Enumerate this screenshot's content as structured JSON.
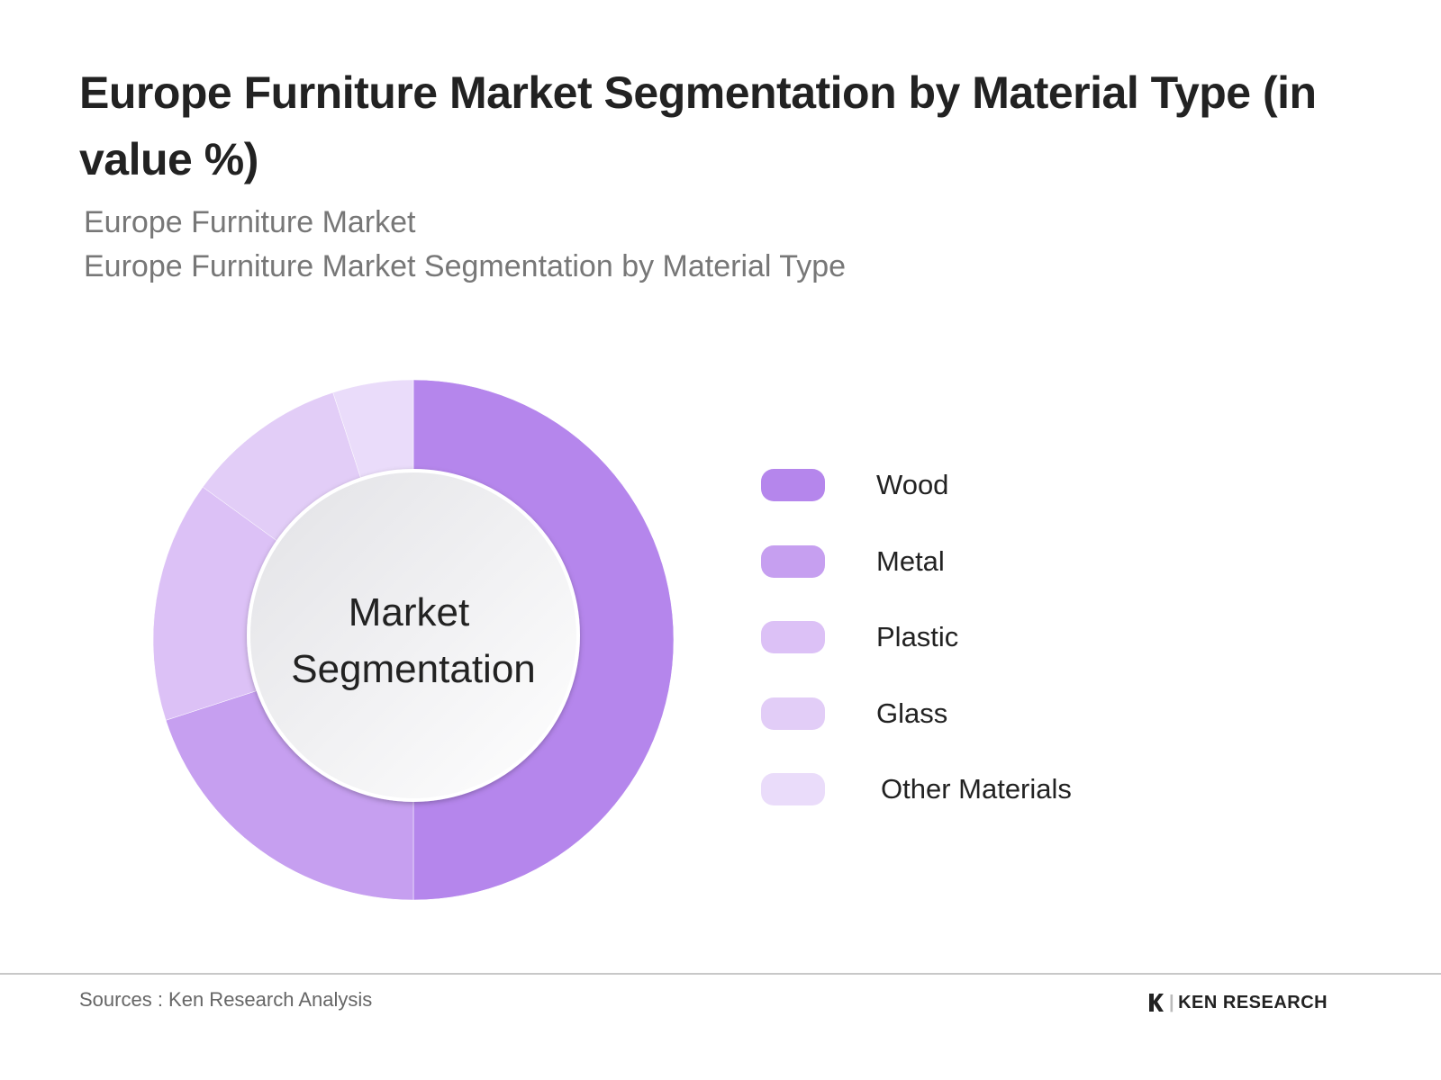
{
  "chart_data": {
    "type": "pie",
    "title": "Europe Furniture Market Segmentation by Material Type (in value %)",
    "subtitle_lines": [
      "Europe Furniture Market",
      "Europe Furniture Market Segmentation by Material Type"
    ],
    "center_label": [
      "Market",
      "Segmentation"
    ],
    "categories": [
      "Wood",
      "Metal",
      "Plastic",
      "Glass",
      "Other Materials"
    ],
    "values": [
      50,
      20,
      15,
      10,
      5
    ],
    "colors": [
      "#b586ec",
      "#c69ff0",
      "#dcc1f6",
      "#e2cdf7",
      "#eadcfa"
    ],
    "donut": true,
    "legend_position": "right"
  },
  "footer": {
    "source": "Sources : Ken Research Analysis",
    "logo_text": "KEN RESEARCH"
  }
}
